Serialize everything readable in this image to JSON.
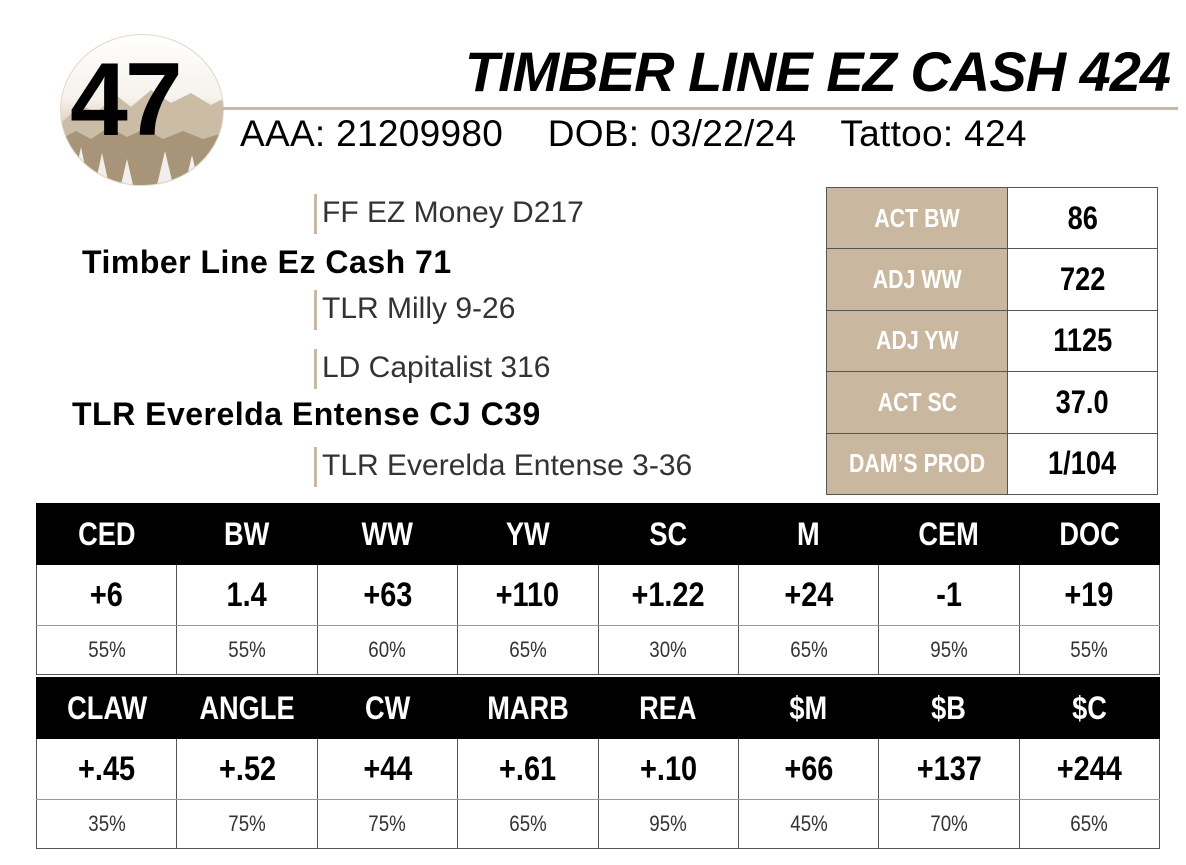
{
  "lot": {
    "number": "47"
  },
  "animal": {
    "name": "TIMBER LINE EZ CASH 424",
    "aaa": "AAA: 21209980",
    "dob": "DOB: 03/22/24",
    "tattoo": "Tattoo: 424"
  },
  "pedigree": {
    "sire_sire": "FF EZ Money D217",
    "sire": "Timber Line Ez Cash 71",
    "sire_dam": "TLR Milly 9-26",
    "dam_sire": "LD Capitalist 316",
    "dam": "TLR Everelda Entense CJ C39",
    "dam_dam": "TLR Everelda Entense 3-36"
  },
  "performance": [
    {
      "label": "ACT BW",
      "value": "86"
    },
    {
      "label": "ADJ WW",
      "value": "722"
    },
    {
      "label": "ADJ YW",
      "value": "1125"
    },
    {
      "label": "ACT SC",
      "value": "37.0"
    },
    {
      "label": "DAM’S PROD",
      "value": "1/104"
    }
  ],
  "epd_rows": [
    {
      "headers": [
        "CED",
        "BW",
        "WW",
        "YW",
        "SC",
        "M",
        "CEM",
        "DOC"
      ],
      "values": [
        "+6",
        "1.4",
        "+63",
        "+110",
        "+1.22",
        "+24",
        "-1",
        "+19"
      ],
      "accuracy": [
        "55%",
        "55%",
        "60%",
        "65%",
        "30%",
        "65%",
        "95%",
        "55%"
      ]
    },
    {
      "headers": [
        "CLAW",
        "ANGLE",
        "CW",
        "MARB",
        "REA",
        "$M",
        "$B",
        "$C"
      ],
      "values": [
        "+.45",
        "+.52",
        "+44",
        "+.61",
        "+.10",
        "+66",
        "+137",
        "+244"
      ],
      "accuracy": [
        "35%",
        "75%",
        "75%",
        "65%",
        "95%",
        "45%",
        "70%",
        "65%"
      ]
    }
  ],
  "colors": {
    "tan": "#c9b89f",
    "rule": "#c7b9a5",
    "header_bg": "#000000"
  }
}
